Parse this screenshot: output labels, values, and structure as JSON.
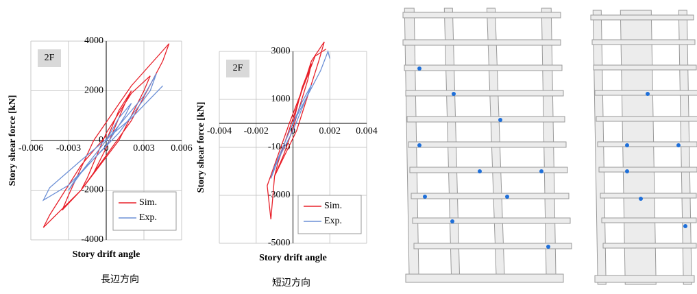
{
  "chart_data": [
    {
      "type": "line",
      "annotation": "2F",
      "x_label": "Story drift angle",
      "y_label": "Story shear force [kN]",
      "caption": "長辺方向",
      "xlim": [
        -0.006,
        0.006
      ],
      "ylim": [
        -4000,
        4000
      ],
      "xticks": [
        -0.006,
        -0.003,
        0,
        0.003,
        0.006
      ],
      "yticks": [
        -4000,
        -2000,
        0,
        2000,
        4000
      ],
      "grid": true,
      "legend": "lower right",
      "series": [
        {
          "name": "Sim.",
          "color": "#e8202a",
          "x": [
            0,
            0.001,
            0.002,
            0.0015,
            0,
            -0.001,
            -0.002,
            -0.0015,
            0,
            0.002,
            0.0035,
            0.003,
            0.001,
            -0.002,
            -0.0035,
            -0.003,
            -0.001,
            0.002,
            0.005,
            0.0045,
            0.002,
            -0.002,
            -0.005,
            -0.0045,
            -0.002,
            0
          ],
          "values": [
            0,
            1200,
            2000,
            1500,
            -300,
            -1300,
            -2000,
            -1500,
            300,
            1900,
            2600,
            2000,
            0,
            -2000,
            -2800,
            -2200,
            0,
            2200,
            3900,
            3200,
            800,
            -2000,
            -3500,
            -3000,
            -1000,
            200
          ]
        },
        {
          "name": "Exp.",
          "color": "#6b8fd6",
          "x": [
            0,
            0.001,
            0.002,
            0.0015,
            0,
            -0.002,
            -0.003,
            -0.0025,
            0,
            0.003,
            0.004,
            0.0035,
            0.001,
            -0.003,
            -0.005,
            -0.0045,
            -0.002,
            0.002,
            0.0045
          ],
          "values": [
            0,
            900,
            1500,
            1000,
            -200,
            -1300,
            -2000,
            -1600,
            0,
            1800,
            2700,
            2000,
            300,
            -1800,
            -2400,
            -1900,
            -800,
            900,
            2200
          ]
        }
      ]
    },
    {
      "type": "line",
      "annotation": "2F",
      "x_label": "Story drift angle",
      "y_label": "Story shear force [kN]",
      "caption": "短辺方向",
      "xlim": [
        -0.004,
        0.004
      ],
      "ylim": [
        -5000,
        3000
      ],
      "xticks": [
        -0.004,
        -0.002,
        0,
        0.002,
        0.004
      ],
      "yticks": [
        -5000,
        -3000,
        -1000,
        1000,
        3000
      ],
      "grid": true,
      "legend": "lower right",
      "series": [
        {
          "name": "Sim.",
          "color": "#e8202a",
          "x": [
            0,
            0.0005,
            0.001,
            0.0008,
            0,
            -0.0005,
            -0.001,
            -0.0008,
            0,
            0.001,
            0.0017,
            0.0014,
            0.0002,
            -0.001,
            -0.0012,
            -0.0014,
            -0.0002,
            0.0012,
            0.0018
          ],
          "values": [
            0,
            1500,
            2500,
            1800,
            -200,
            -1300,
            -2200,
            -1600,
            200,
            2600,
            3400,
            2600,
            -300,
            -2200,
            -4000,
            -2600,
            0,
            2800,
            3100
          ]
        },
        {
          "name": "Exp.",
          "color": "#6b8fd6",
          "x": [
            0,
            0.0005,
            0.001,
            0.0008,
            0,
            -0.0008,
            -0.0012,
            -0.001,
            0,
            0.0015,
            0.0019,
            0.002
          ],
          "values": [
            0,
            900,
            1600,
            1200,
            -300,
            -1500,
            -2300,
            -1800,
            0,
            2200,
            3000,
            2700
          ]
        }
      ]
    }
  ]
}
